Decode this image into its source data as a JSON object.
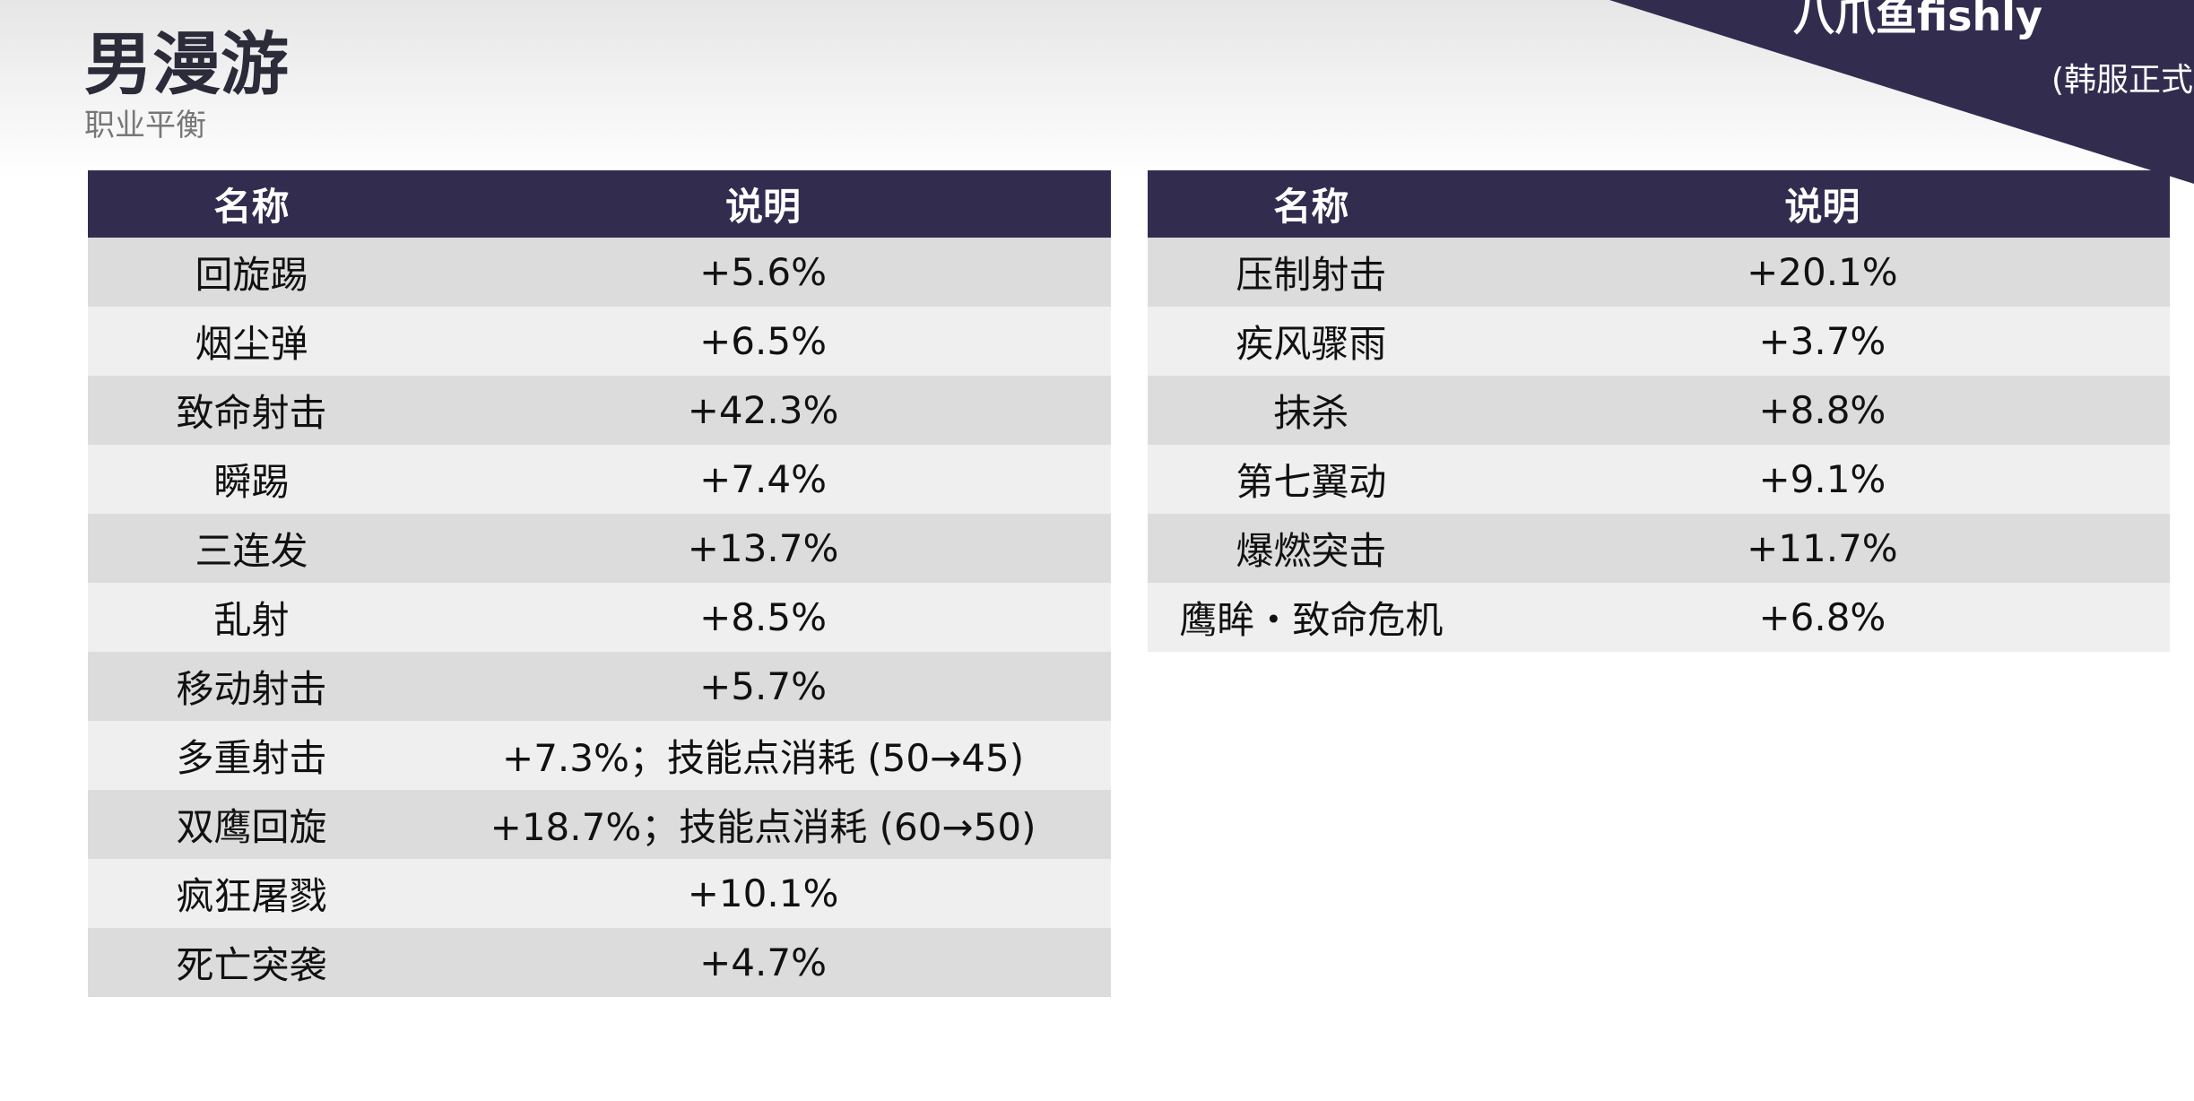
{
  "header": {
    "title": "男漫游",
    "subtitle": "职业平衡",
    "brand": "八爪鱼fishly",
    "note": "(韩服正式"
  },
  "tables": [
    {
      "columns": [
        "名称",
        "说明"
      ],
      "rows": [
        [
          "回旋踢",
          "+5.6%"
        ],
        [
          "烟尘弹",
          "+6.5%"
        ],
        [
          "致命射击",
          "+42.3%"
        ],
        [
          "瞬踢",
          "+7.4%"
        ],
        [
          "三连发",
          "+13.7%"
        ],
        [
          "乱射",
          "+8.5%"
        ],
        [
          "移动射击",
          "+5.7%"
        ],
        [
          "多重射击",
          "+7.3%；技能点消耗 (50→45)"
        ],
        [
          "双鹰回旋",
          "+18.7%；技能点消耗 (60→50)"
        ],
        [
          "疯狂屠戮",
          "+10.1%"
        ],
        [
          "死亡突袭",
          "+4.7%"
        ]
      ]
    },
    {
      "columns": [
        "名称",
        "说明"
      ],
      "rows": [
        [
          "压制射击",
          "+20.1%"
        ],
        [
          "疾风骤雨",
          "+3.7%"
        ],
        [
          "抹杀",
          "+8.8%"
        ],
        [
          "第七翼动",
          "+9.1%"
        ],
        [
          "爆燃突击",
          "+11.7%"
        ],
        [
          "鹰眸・致命危机",
          "+6.8%"
        ]
      ]
    }
  ]
}
